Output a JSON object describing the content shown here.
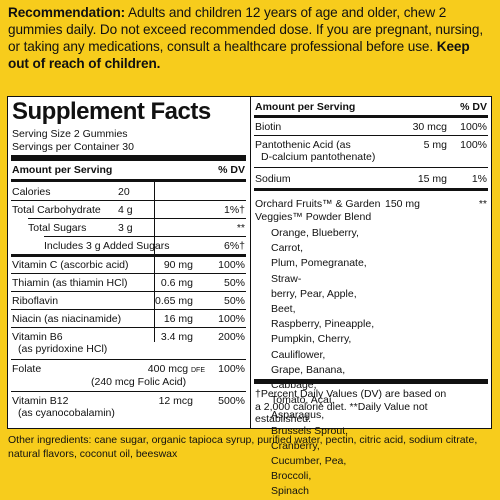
{
  "recommendation": {
    "lead": "Recommendation:",
    "text": "Adults and children 12 years of age and older, chew 2 gummies daily. Do not exceed recommended dose. If you are pregnant, nursing, or taking any medications, consult a healthcare professional before use.",
    "warning": "Keep out of reach of children."
  },
  "facts": {
    "title": "Supplement Facts",
    "serving_size": "Serving Size 2 Gummies",
    "servings_per_container": "Servings per Container 30",
    "header_left": "Amount per Serving",
    "header_right": "% DV",
    "left_rows": [
      {
        "name": "Calories",
        "amount": "20",
        "dv": ""
      },
      {
        "name": "Total Carbohydrate",
        "amount": "4 g",
        "dv": "1%†"
      },
      {
        "name": "Total Sugars",
        "amount": "3 g",
        "dv": "**"
      },
      {
        "name": "Includes 3 g Added Sugars",
        "amount": "",
        "dv": "6%†"
      },
      {
        "name": "Vitamin C (ascorbic acid)",
        "amount": "90 mg",
        "dv": "100%"
      },
      {
        "name": "Thiamin (as thiamin HCl)",
        "amount": "0.6 mg",
        "dv": "50%"
      },
      {
        "name": "Riboflavin",
        "amount": "0.65 mg",
        "dv": "50%"
      },
      {
        "name": "Niacin (as niacinamide)",
        "amount": "16 mg",
        "dv": "100%"
      },
      {
        "name": "Vitamin B6",
        "sub": "(as pyridoxine HCl)",
        "amount": "3.4 mg",
        "dv": "200%"
      },
      {
        "name": "Folate",
        "amount": "400 mcg",
        "amount_suffix": "DFE",
        "dv": "100%",
        "sub2": "(240 mcg Folic Acid)"
      },
      {
        "name": "Vitamin B12",
        "sub": "(as cyanocobalamin)",
        "amount": "12 mcg",
        "dv": "500%"
      }
    ],
    "right_header_left": "Amount per Serving",
    "right_header_right": "% DV",
    "right_rows": [
      {
        "name": "Biotin",
        "amount": "30 mcg",
        "dv": "100%"
      },
      {
        "name": "Pantothenic Acid (as",
        "sub": "D-calcium pantothenate)",
        "amount": "5 mg",
        "dv": "100%"
      },
      {
        "name": "Sodium",
        "amount": "15 mg",
        "dv": "1%"
      }
    ],
    "blend": {
      "name_line1": "Orchard Fruits™ & Garden",
      "name_line2": "Veggies™ Powder Blend",
      "amount": "150 mg",
      "dv": "**",
      "ingredients": [
        "Orange, Blueberry, Carrot,",
        "Plum, Pomegranate, Straw-",
        "berry, Pear, Apple, Beet,",
        "Raspberry, Pineapple,",
        "Pumpkin, Cherry, Cauliflower,",
        "Grape, Banana, Cabbage,",
        "Tomato, Açaí, Asparagus,",
        "Brussels Sprout, Cranberry,",
        "Cucumber, Pea, Broccoli,",
        "Spinach"
      ]
    },
    "footnote": [
      "†Percent Daily Values (DV) are based on",
      "a 2,000 calorie diet. **Daily Value not",
      "established."
    ]
  },
  "other_ingredients": "Other ingredients: cane sugar, organic tapioca syrup, purified water, pectin, citric acid, sodium citrate, natural flavors, coconut oil, beeswax"
}
